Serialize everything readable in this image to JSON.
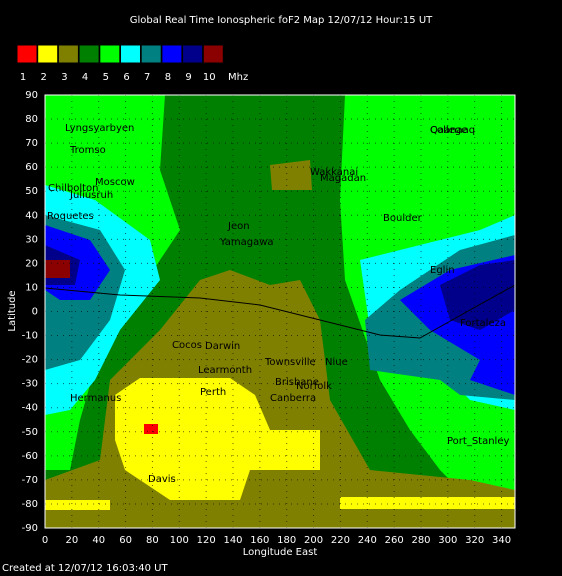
{
  "title": "Global Real Time Ionospheric foF2 Map  12/07/12 Hour:15 UT",
  "legend": {
    "unit": "Mhz",
    "items": [
      {
        "label": "1",
        "color": "#ff0000"
      },
      {
        "label": "2",
        "color": "#ffff00"
      },
      {
        "label": "3",
        "color": "#808000"
      },
      {
        "label": "4",
        "color": "#008000"
      },
      {
        "label": "5",
        "color": "#00ff00"
      },
      {
        "label": "6",
        "color": "#00ffff"
      },
      {
        "label": "7",
        "color": "#008080"
      },
      {
        "label": "8",
        "color": "#0000ff"
      },
      {
        "label": "9",
        "color": "#00008b"
      },
      {
        "label": "10",
        "color": "#8b0000"
      }
    ]
  },
  "map": {
    "x_label": "Longitude East",
    "y_label": "Latitude",
    "xlim": [
      0,
      350
    ],
    "ylim": [
      -90,
      90
    ],
    "xticks": [
      0,
      20,
      40,
      60,
      80,
      100,
      120,
      140,
      160,
      180,
      200,
      220,
      240,
      260,
      280,
      300,
      320,
      340
    ],
    "yticks": [
      90,
      80,
      70,
      60,
      50,
      40,
      30,
      20,
      10,
      0,
      -10,
      -20,
      -30,
      -40,
      -50,
      -60,
      -70,
      -80,
      -90
    ],
    "stations": [
      "Lyngsyarbyen",
      "Tromso",
      "Moscow",
      "Chilbolton",
      "Juliusruh",
      "Roquetes",
      "Wakkanai",
      "Magadan",
      "College",
      "Qaanaaq",
      "Boulder",
      "Jeon",
      "Yamagawa",
      "Eglin",
      "Cocos",
      "Darwin",
      "Learmonth",
      "Townsville",
      "Niue",
      "Brisbane",
      "Norfolk",
      "Perth",
      "Canberra",
      "Hermanus",
      "Port_Stanley",
      "Davis",
      "Fortaleza"
    ]
  },
  "footer": "Created at 12/07/12 16:03:40 UT"
}
